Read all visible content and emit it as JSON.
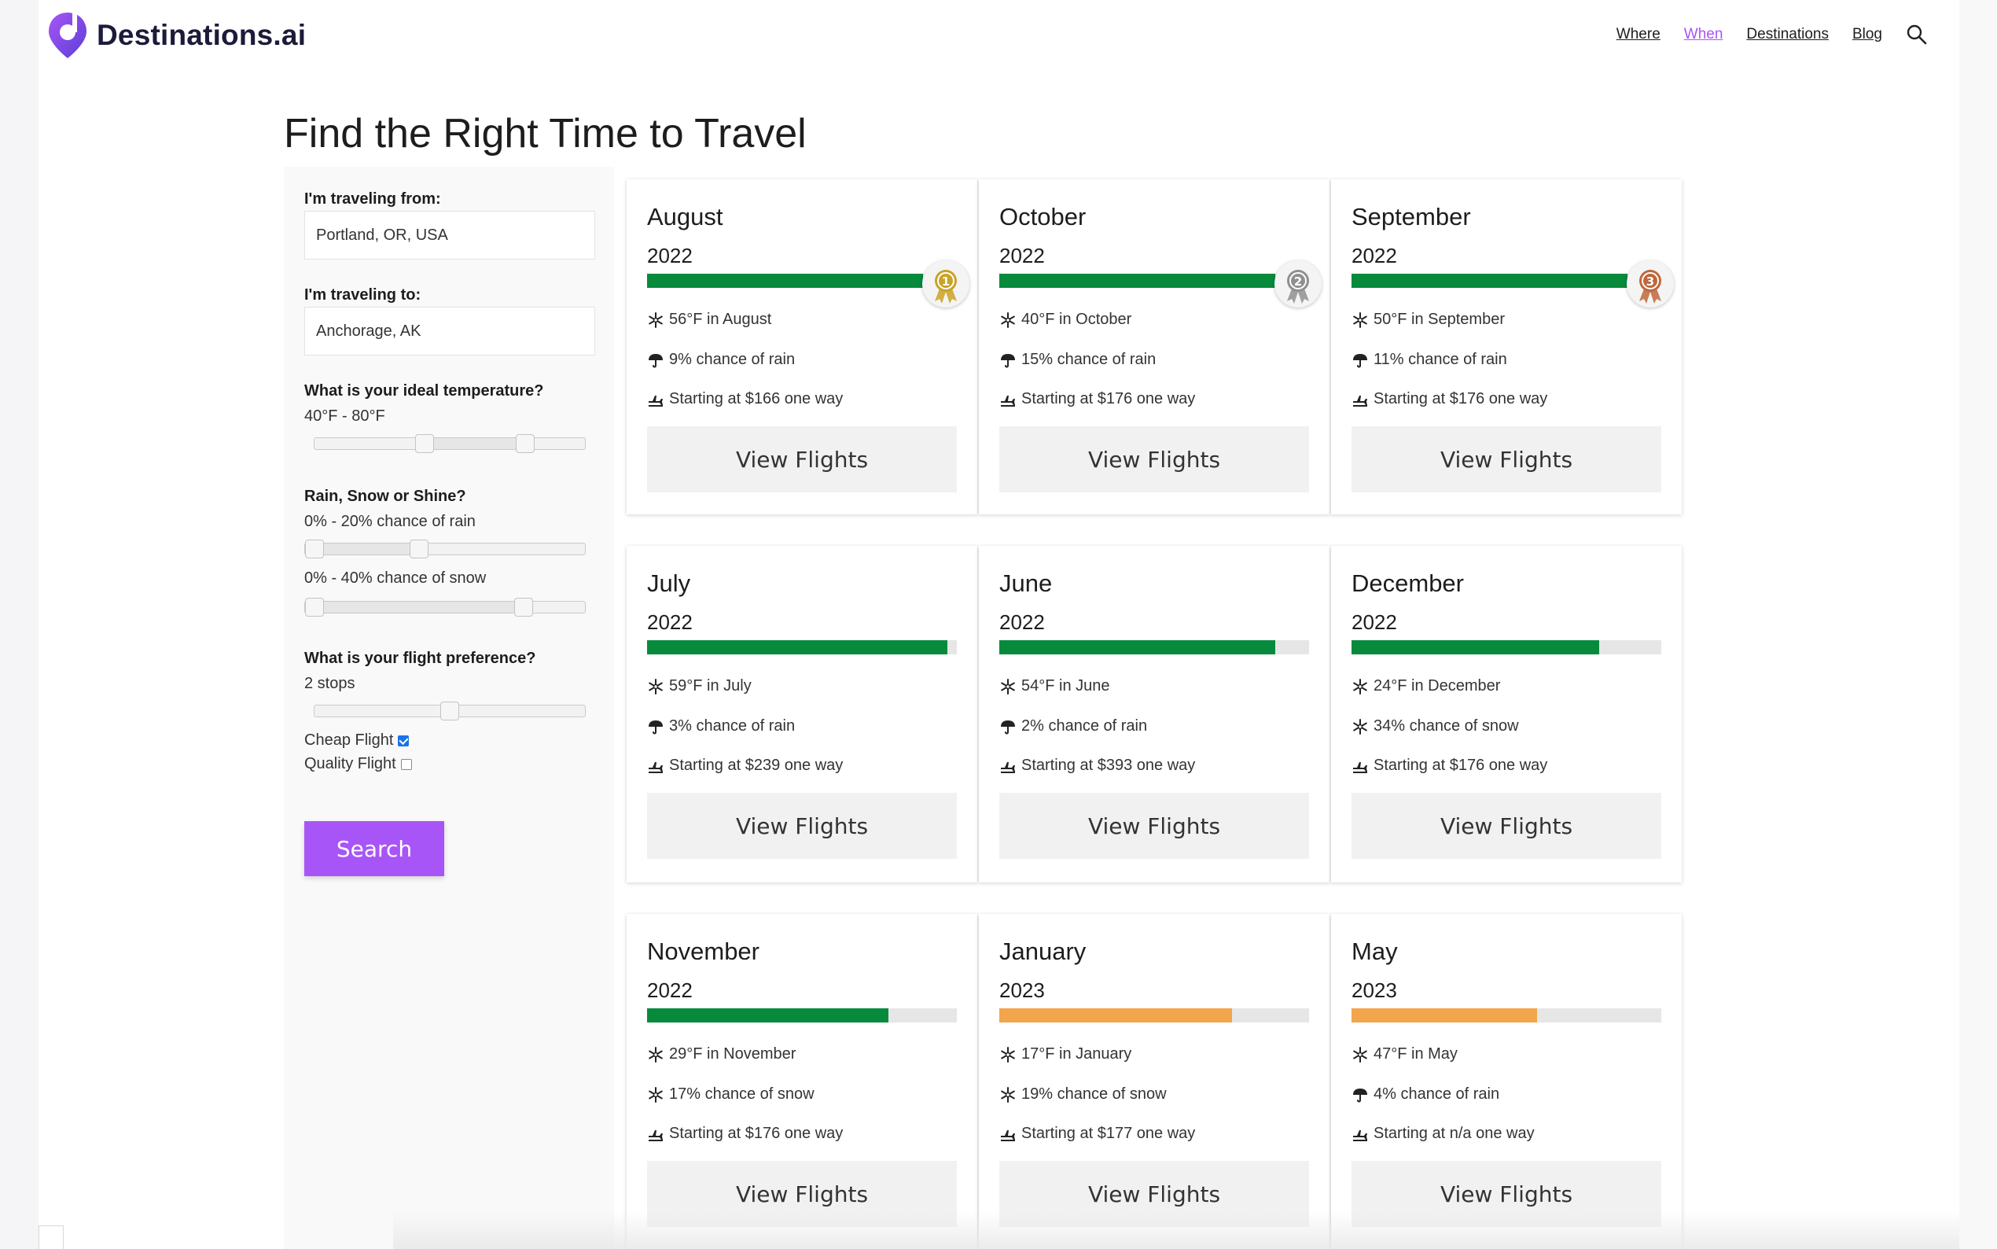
{
  "brand": {
    "name": "Destinations.ai",
    "accent": "#a855f7"
  },
  "nav": {
    "items": [
      {
        "label": "Where"
      },
      {
        "label": "When",
        "active": true
      },
      {
        "label": "Destinations"
      },
      {
        "label": "Blog"
      }
    ],
    "search_icon": "search-icon"
  },
  "page": {
    "title": "Find the Right Time to Travel"
  },
  "sidebar": {
    "from_label": "I'm traveling from:",
    "from_value": "Portland, OR, USA",
    "to_label": "I'm traveling to:",
    "to_value": "Anchorage, AK",
    "temp_label": "What is your ideal temperature?",
    "temp_value": "40°F - 80°F",
    "temp_range_fraction": [
      0.4,
      0.8
    ],
    "weather_label": "Rain, Snow or Shine?",
    "rain_value": "0% - 20% chance of rain",
    "rain_range_fraction": [
      0.0,
      0.4
    ],
    "snow_value": "0% - 40% chance of snow",
    "snow_range_fraction": [
      0.0,
      0.8
    ],
    "flight_label": "What is your flight preference?",
    "flight_value": "2 stops",
    "flight_fraction": 0.5,
    "cheap_label": "Cheap Flight",
    "cheap_checked": true,
    "quality_label": "Quality Flight",
    "quality_checked": false,
    "search_label": "Search"
  },
  "colors": {
    "good": "#078a3c",
    "fair": "#f2a54a",
    "bar_bg": "#e6e6e6"
  },
  "cards": [
    {
      "month": "August",
      "year": "2022",
      "score": 0.89,
      "rank": "1",
      "medal_color": "#c9a227",
      "temp": "56°F in August",
      "precip_icon": "umbrella-icon",
      "precip": "9% chance of rain",
      "flight": "Starting at $166 one way",
      "button": "View Flights"
    },
    {
      "month": "October",
      "year": "2022",
      "score": 0.89,
      "rank": "2",
      "medal_color": "#8f8f8f",
      "temp": "40°F in October",
      "precip_icon": "umbrella-icon",
      "precip": "15% chance of rain",
      "flight": "Starting at $176 one way",
      "button": "View Flights"
    },
    {
      "month": "September",
      "year": "2022",
      "score": 0.89,
      "rank": "3",
      "medal_color": "#c0673b",
      "temp": "50°F in September",
      "precip_icon": "umbrella-icon",
      "precip": "11% chance of rain",
      "flight": "Starting at $176 one way",
      "button": "View Flights"
    },
    {
      "month": "July",
      "year": "2022",
      "score": 0.97,
      "temp": "59°F in July",
      "precip_icon": "umbrella-icon",
      "precip": "3% chance of rain",
      "flight": "Starting at $239 one way",
      "button": "View Flights"
    },
    {
      "month": "June",
      "year": "2022",
      "score": 0.89,
      "temp": "54°F in June",
      "precip_icon": "umbrella-icon",
      "precip": "2% chance of rain",
      "flight": "Starting at $393 one way",
      "button": "View Flights"
    },
    {
      "month": "December",
      "year": "2022",
      "score": 0.8,
      "temp": "24°F in December",
      "precip_icon": "snowflake-icon",
      "precip": "34% chance of snow",
      "flight": "Starting at $176 one way",
      "button": "View Flights"
    },
    {
      "month": "November",
      "year": "2022",
      "score": 0.78,
      "temp": "29°F in November",
      "precip_icon": "snowflake-icon",
      "precip": "17% chance of snow",
      "flight": "Starting at $176 one way",
      "button": "View Flights"
    },
    {
      "month": "January",
      "year": "2023",
      "score": 0.75,
      "temp": "17°F in January",
      "precip_icon": "snowflake-icon",
      "precip": "19% chance of snow",
      "flight": "Starting at $177 one way",
      "button": "View Flights"
    },
    {
      "month": "May",
      "year": "2023",
      "score": 0.6,
      "temp": "47°F in May",
      "precip_icon": "umbrella-icon",
      "precip": "4% chance of rain",
      "flight": "Starting at n/a one way",
      "button": "View Flights"
    }
  ]
}
